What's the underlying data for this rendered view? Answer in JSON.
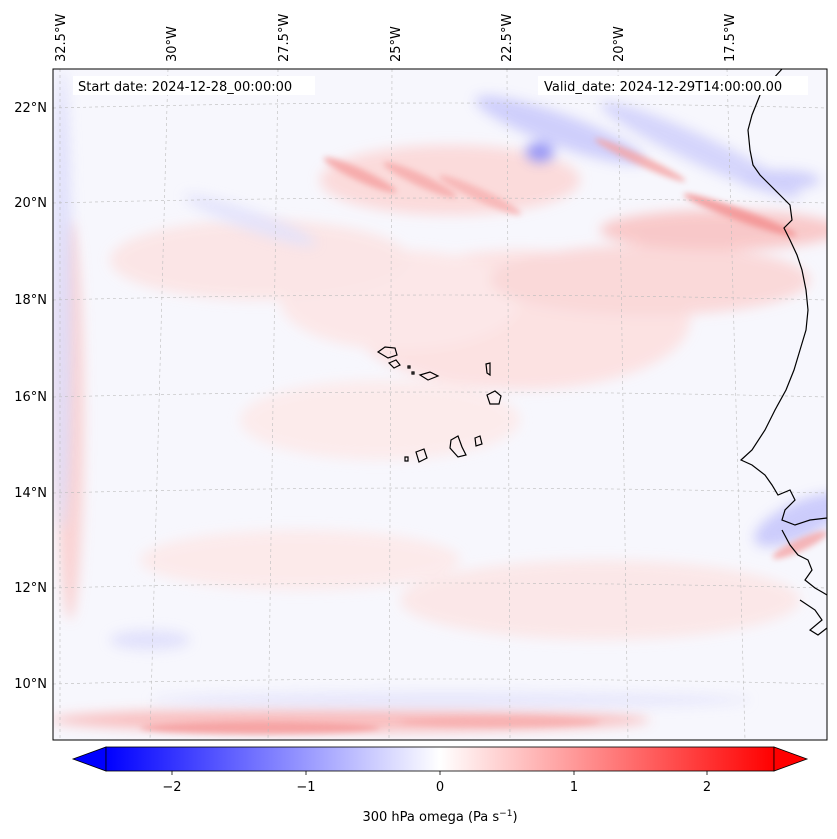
{
  "map": {
    "start_date": "Start date: 2024-12-28_00:00:00",
    "valid_date": "Valid_date: 2024-12-29T14:00:00.00",
    "lon_labels": [
      "32.5°W",
      "30°W",
      "27.5°W",
      "25°W",
      "22.5°W",
      "20°W",
      "17.5°W"
    ],
    "lat_labels": [
      "22°N",
      "20°N",
      "18°N",
      "16°N",
      "14°N",
      "12°N",
      "10°N"
    ],
    "colorbar_ticks": [
      "−2",
      "−1",
      "0",
      "1",
      "2"
    ],
    "colorbar_label_main": "300 hPa omega (Pa s",
    "colorbar_label_sup": "−1",
    "colorbar_label_close": ")",
    "colorbar_range": [
      -2.6,
      2.6
    ],
    "colors": {
      "negative": "#0000ff",
      "zero": "#ffffff",
      "positive": "#ff0000"
    }
  }
}
